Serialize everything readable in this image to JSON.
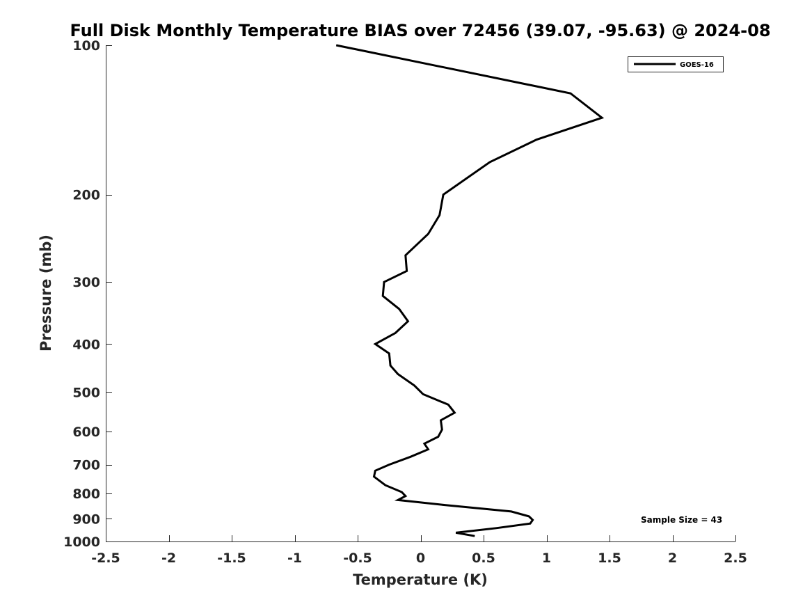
{
  "chart_data": {
    "type": "line",
    "title": "Full Disk Monthly Temperature BIAS over 72456 (39.07, -95.63) @ 2024-08",
    "xlabel": "Temperature (K)",
    "ylabel": "Pressure (mb)",
    "xlim": [
      -2.5,
      2.5
    ],
    "ylim": [
      1000,
      100
    ],
    "y_scale": "log",
    "y_reversed": true,
    "x_ticks": [
      "-2.5",
      "-2",
      "-1.5",
      "-1",
      "-0.5",
      "0",
      "0.5",
      "1",
      "1.5",
      "2",
      "2.5"
    ],
    "y_ticks": [
      "100",
      "200",
      "300",
      "400",
      "500",
      "600",
      "700",
      "800",
      "900",
      "1000"
    ],
    "grid": false,
    "legend_position": "top-right",
    "series": [
      {
        "name": "GOES-16",
        "color": "#000000",
        "points": [
          {
            "x": -0.67,
            "p": 100
          },
          {
            "x": 1.19,
            "p": 125
          },
          {
            "x": 1.44,
            "p": 140
          },
          {
            "x": 0.92,
            "p": 155
          },
          {
            "x": 0.55,
            "p": 172
          },
          {
            "x": 0.18,
            "p": 200
          },
          {
            "x": 0.15,
            "p": 220
          },
          {
            "x": 0.06,
            "p": 240
          },
          {
            "x": -0.12,
            "p": 265
          },
          {
            "x": -0.11,
            "p": 285
          },
          {
            "x": -0.29,
            "p": 300
          },
          {
            "x": -0.3,
            "p": 320
          },
          {
            "x": -0.17,
            "p": 340
          },
          {
            "x": -0.1,
            "p": 360
          },
          {
            "x": -0.2,
            "p": 380
          },
          {
            "x": -0.36,
            "p": 400
          },
          {
            "x": -0.25,
            "p": 418
          },
          {
            "x": -0.24,
            "p": 442
          },
          {
            "x": -0.18,
            "p": 460
          },
          {
            "x": -0.05,
            "p": 485
          },
          {
            "x": 0.02,
            "p": 505
          },
          {
            "x": 0.22,
            "p": 530
          },
          {
            "x": 0.27,
            "p": 550
          },
          {
            "x": 0.16,
            "p": 570
          },
          {
            "x": 0.17,
            "p": 595
          },
          {
            "x": 0.14,
            "p": 615
          },
          {
            "x": 0.03,
            "p": 635
          },
          {
            "x": 0.06,
            "p": 652
          },
          {
            "x": -0.08,
            "p": 675
          },
          {
            "x": -0.25,
            "p": 700
          },
          {
            "x": -0.36,
            "p": 720
          },
          {
            "x": -0.37,
            "p": 740
          },
          {
            "x": -0.28,
            "p": 770
          },
          {
            "x": -0.15,
            "p": 795
          },
          {
            "x": -0.12,
            "p": 810
          },
          {
            "x": -0.18,
            "p": 825
          },
          {
            "x": 0.2,
            "p": 845
          },
          {
            "x": 0.72,
            "p": 870
          },
          {
            "x": 0.86,
            "p": 890
          },
          {
            "x": 0.89,
            "p": 905
          },
          {
            "x": 0.87,
            "p": 920
          },
          {
            "x": 0.6,
            "p": 940
          },
          {
            "x": 0.28,
            "p": 960
          },
          {
            "x": 0.43,
            "p": 975
          }
        ]
      }
    ],
    "annotation": "Sample Size = 43"
  }
}
